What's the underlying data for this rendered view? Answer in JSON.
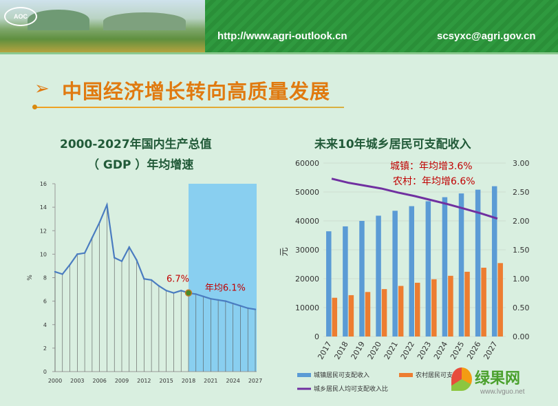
{
  "banner": {
    "logo_text": "AOC",
    "url": "http://www.agri-outlook.cn",
    "email": "scsyxc@agri.gov.cn"
  },
  "slide": {
    "arrow": "➢",
    "title": "中国经济增长转向高质量发展"
  },
  "watermark": {
    "name": "绿果网",
    "url": "www.lvguo.net"
  },
  "colors": {
    "gdp_line": "#4a7cc0",
    "forecast_band": "#89cff0",
    "urban_bar": "#5b9bd5",
    "rural_bar": "#ed7d31",
    "ratio_line": "#7030a0",
    "title_orange": "#e07a10",
    "annotation_red": "#c00000"
  },
  "chart_data": [
    {
      "type": "line",
      "title": "2000-2027年国内生产总值",
      "subtitle": "（ GDP ）年均增速",
      "ylabel": "%",
      "ylim": [
        0,
        16
      ],
      "yticks": [
        0,
        2,
        4,
        6,
        8,
        10,
        12,
        14,
        16
      ],
      "x": [
        2000,
        2001,
        2002,
        2003,
        2004,
        2005,
        2006,
        2007,
        2008,
        2009,
        2010,
        2011,
        2012,
        2013,
        2014,
        2015,
        2016,
        2017,
        2018,
        2019,
        2020,
        2021,
        2022,
        2023,
        2024,
        2025,
        2026,
        2027
      ],
      "xtick_labels": [
        "2000",
        "2003",
        "2006",
        "2009",
        "2012",
        "2015",
        "2018",
        "2021",
        "2024",
        "2027"
      ],
      "values": [
        8.5,
        8.3,
        9.1,
        10.0,
        10.1,
        11.4,
        12.7,
        14.2,
        9.7,
        9.4,
        10.6,
        9.5,
        7.9,
        7.8,
        7.3,
        6.9,
        6.7,
        6.9,
        6.7,
        6.6,
        6.4,
        6.2,
        6.1,
        6.0,
        5.8,
        5.6,
        5.4,
        5.3
      ],
      "forecast_range": [
        2018,
        2027
      ],
      "grid": "vertical",
      "annotations": [
        {
          "text": "6.7%",
          "x": 2018,
          "y": 6.7
        },
        {
          "text": "年均6.1%",
          "x": 2023,
          "y": 6.9
        }
      ]
    },
    {
      "type": "bar",
      "title": "未来10年城乡居民可支配收入",
      "ylabel": "元",
      "ylim": [
        0,
        60000
      ],
      "yticks": [
        0,
        10000,
        20000,
        30000,
        40000,
        50000,
        60000
      ],
      "y2lim": [
        0,
        3
      ],
      "y2ticks": [
        "0.00",
        "0.50",
        "1.00",
        "1.50",
        "2.00",
        "2.50",
        "3.00"
      ],
      "categories": [
        "2017",
        "2018",
        "2019",
        "2020",
        "2021",
        "2022",
        "2023",
        "2024",
        "2025",
        "2026",
        "2027"
      ],
      "series": [
        {
          "name": "城镇居民可支配收入",
          "type": "bar",
          "axis": "left",
          "values": [
            36400,
            38100,
            40000,
            41800,
            43500,
            45100,
            46800,
            48200,
            49500,
            50800,
            52000
          ]
        },
        {
          "name": "农村居民可支配收入",
          "type": "bar",
          "axis": "left",
          "values": [
            13400,
            14300,
            15400,
            16400,
            17500,
            18600,
            19800,
            21000,
            22400,
            23800,
            25400
          ]
        },
        {
          "name": "城乡居民人均可支配收入比",
          "type": "line",
          "axis": "right",
          "values": [
            2.73,
            2.66,
            2.61,
            2.56,
            2.49,
            2.43,
            2.36,
            2.29,
            2.21,
            2.13,
            2.04
          ]
        }
      ],
      "annotations": [
        {
          "text": "城镇：年均增3.6%"
        },
        {
          "text": "农村：年均增6.6%"
        }
      ],
      "legend_position": "bottom"
    }
  ]
}
